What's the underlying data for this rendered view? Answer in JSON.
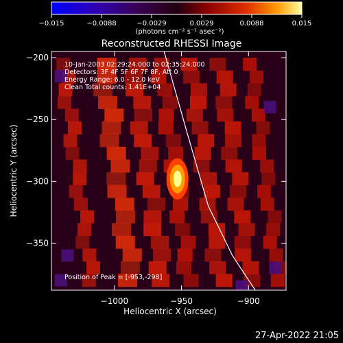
{
  "colorbar": {
    "ticks": [
      "−0.015",
      "−0.0088",
      "−0.0029",
      "0.0029",
      "0.0088",
      "0.015"
    ],
    "unit_label": "(photons cm⁻² s⁻¹ asec⁻²)",
    "colors": [
      "#0000ff",
      "#2a00a0",
      "#3a0050",
      "#200010",
      "#800000",
      "#e03000",
      "#ff9000",
      "#ffff80"
    ]
  },
  "chart_data": {
    "type": "heatmap",
    "title": "Reconstructed RHESSI Image",
    "xlabel": "Heliocentric X (arcsec)",
    "ylabel": "Heliocentric Y (arcsec)",
    "xlim": [
      -1047,
      -872
    ],
    "ylim": [
      -388,
      -195
    ],
    "x_ticks": [
      {
        "value": -1000,
        "label": "−1000"
      },
      {
        "value": -950,
        "label": "−950"
      },
      {
        "value": -900,
        "label": "−900"
      }
    ],
    "y_ticks": [
      {
        "value": -200,
        "label": "−200"
      },
      {
        "value": -250,
        "label": "−250"
      },
      {
        "value": -300,
        "label": "−300"
      },
      {
        "value": -350,
        "label": "−350"
      }
    ],
    "info_lines": [
      "10-Jan-2003 02:29:24.000 to 02:35:24.000",
      "Detectors: 3F 4F 5F 6F 7F 8F, Att 0",
      "Energy Range: 6.0 - 12.0 keV",
      "Clean     Total counts: 1.41E+04"
    ],
    "peak_label": "Position of Peak = [-953,-298]",
    "peak": {
      "x": -953,
      "y": -298
    },
    "limb": [
      [
        -963,
        -195
      ],
      [
        -946,
        -260
      ],
      [
        -930,
        -320
      ],
      [
        -912,
        -360
      ],
      [
        -895,
        -388
      ]
    ]
  },
  "timestamp": "27-Apr-2022 21:05"
}
